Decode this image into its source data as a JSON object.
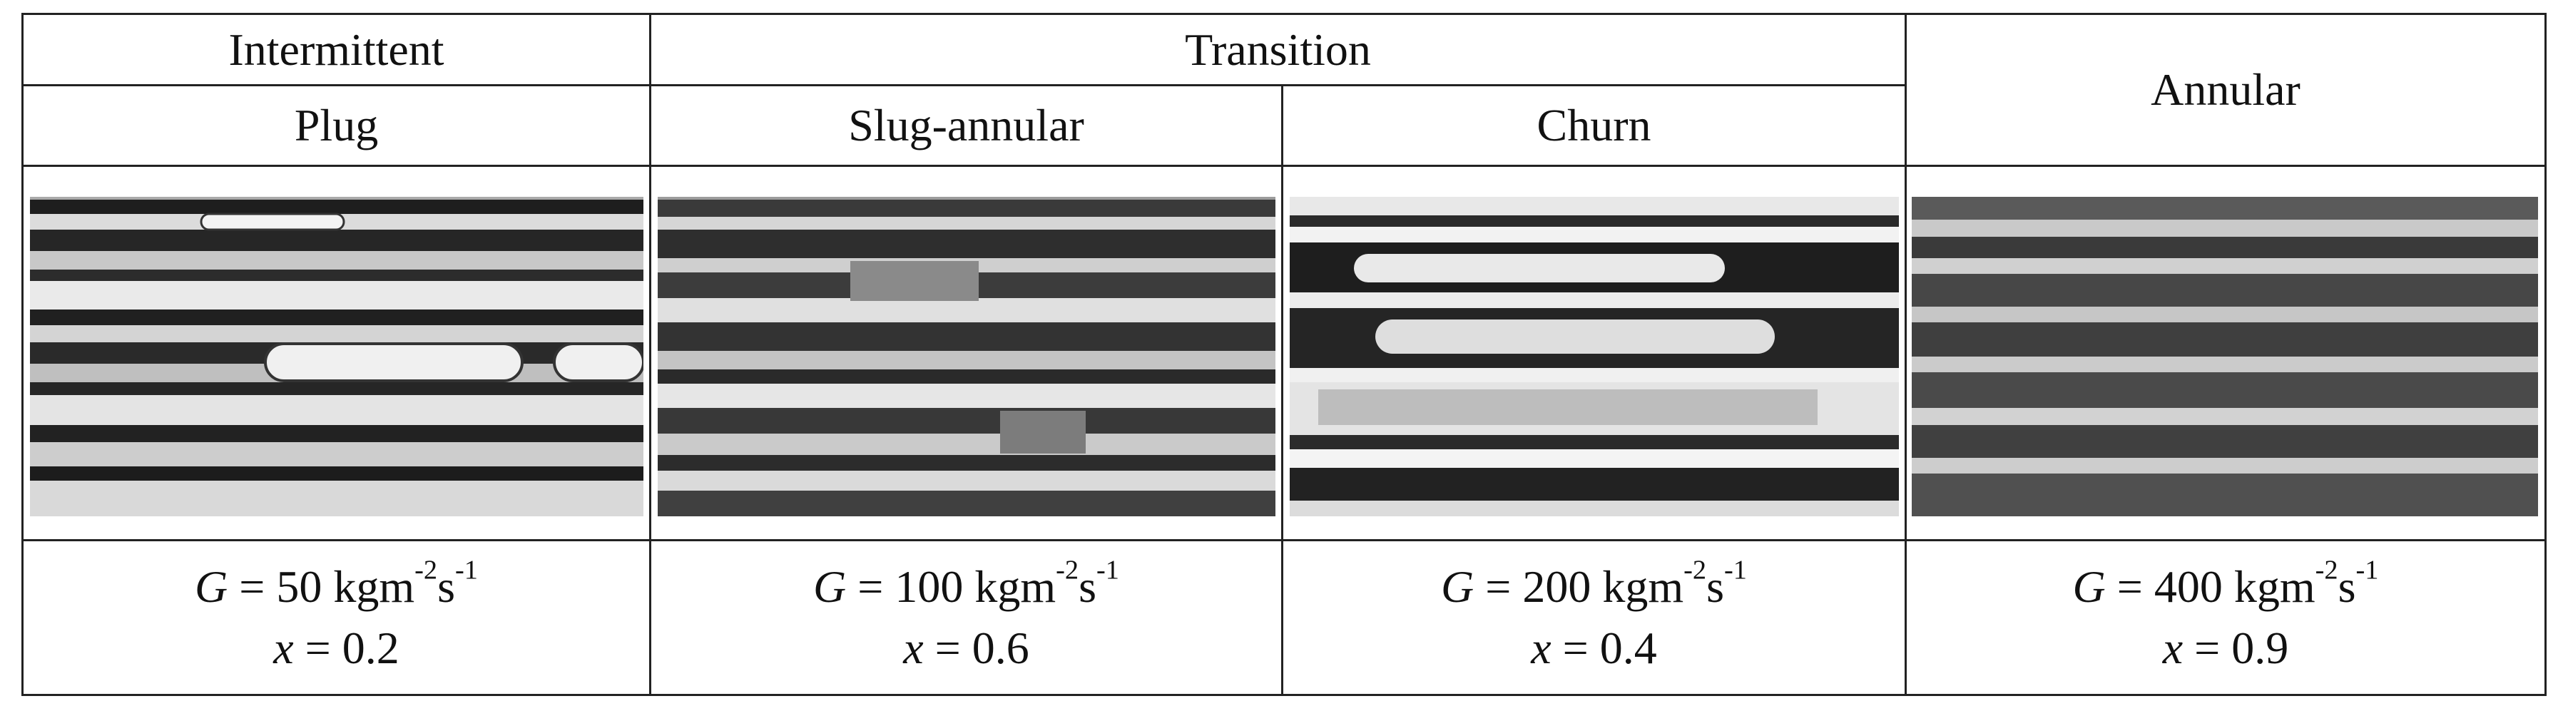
{
  "table": {
    "groups": [
      {
        "label": "Intermittent"
      },
      {
        "label": "Transition"
      },
      {
        "label": "Annular"
      }
    ],
    "subheaders": [
      "Plug",
      "Slug-annular",
      "Churn"
    ],
    "columns": [
      {
        "regime": "Plug",
        "image_alt": "plug-flow-photo",
        "G_value": "50",
        "x_value": "0.2"
      },
      {
        "regime": "Slug-annular",
        "image_alt": "slug-annular-flow-photo",
        "G_value": "100",
        "x_value": "0.6"
      },
      {
        "regime": "Churn",
        "image_alt": "churn-flow-photo",
        "G_value": "200",
        "x_value": "0.4"
      },
      {
        "regime": "Annular",
        "image_alt": "annular-flow-photo",
        "G_value": "400",
        "x_value": "0.9"
      }
    ],
    "param_labels": {
      "G_symbol": "G",
      "equals": " = ",
      "unit_base": " kgm",
      "unit_exp1": "-2",
      "unit_s": "s",
      "unit_exp2": "-1",
      "x_symbol": "x"
    }
  }
}
